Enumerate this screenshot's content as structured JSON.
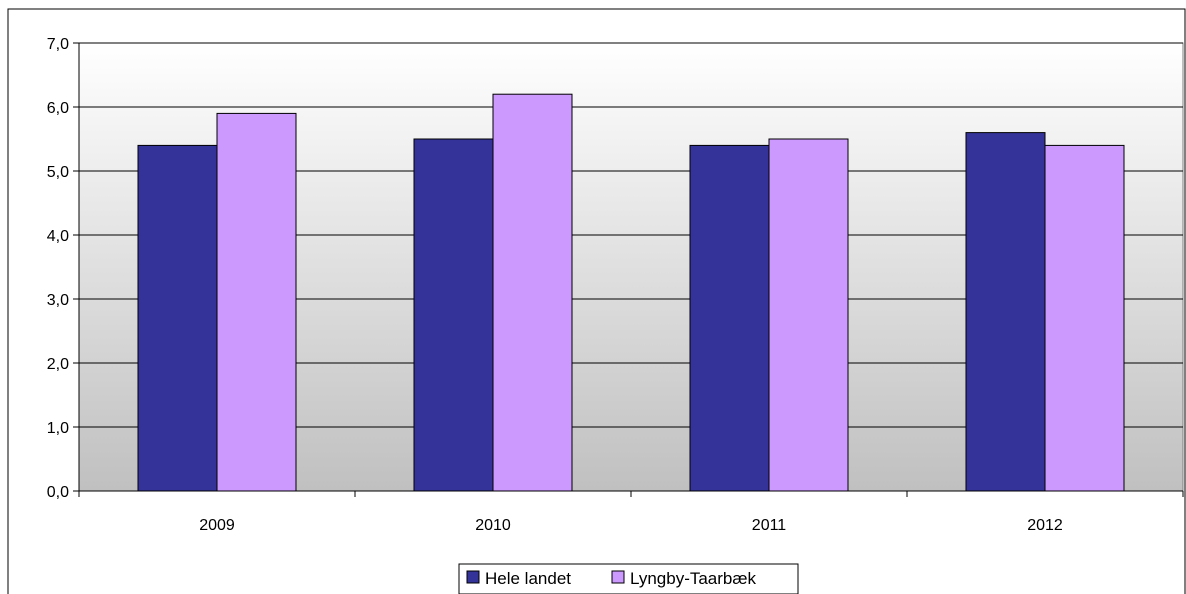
{
  "chart_data": {
    "type": "bar",
    "title": "",
    "xlabel": "",
    "ylabel": "",
    "categories": [
      "2009",
      "2010",
      "2011",
      "2012"
    ],
    "series": [
      {
        "name": "Hele landet",
        "color": "#333399",
        "values": [
          5.4,
          5.5,
          5.4,
          5.6
        ]
      },
      {
        "name": "Lyngby-Taarbæk",
        "color": "#cc99ff",
        "values": [
          5.9,
          6.2,
          5.5,
          5.4
        ]
      }
    ],
    "ylim": [
      0,
      7
    ],
    "yticks": [
      "0,0",
      "1,0",
      "2,0",
      "3,0",
      "4,0",
      "5,0",
      "6,0",
      "7,0"
    ],
    "grid": true,
    "legend_position": "bottom-center",
    "background_gradient": [
      "#ffffff",
      "#c0c0c0"
    ]
  }
}
